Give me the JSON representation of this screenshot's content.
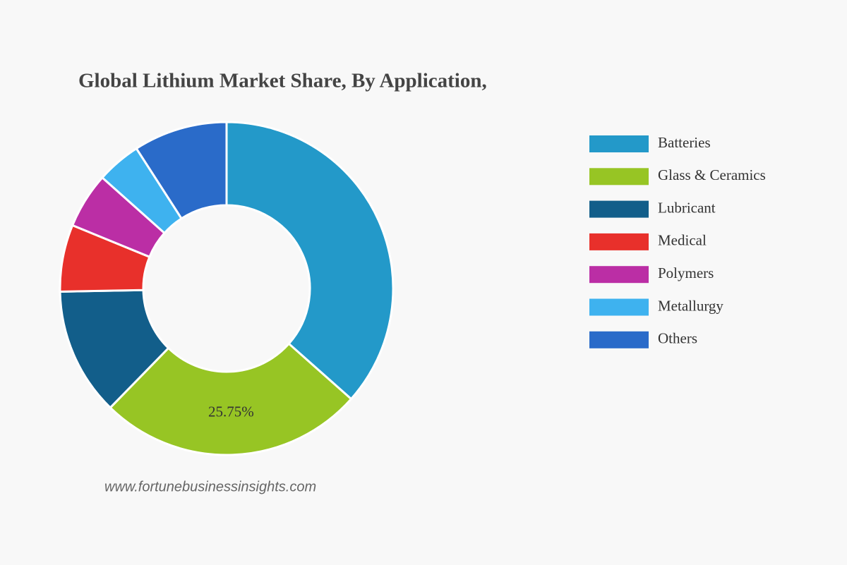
{
  "chart_data": {
    "type": "donut",
    "title": "Global Lithium Market Share, By Application,",
    "watermark": "www.fortunebusinessinsights.com",
    "categories": [
      "Batteries",
      "Glass & Ceramics",
      "Lubricant",
      "Medical",
      "Polymers",
      "Metallurgy",
      "Others"
    ],
    "values": [
      36.55,
      25.75,
      12.4,
      6.5,
      5.4,
      4.3,
      9.1
    ],
    "value_labels": [
      null,
      "25.75%",
      null,
      null,
      null,
      null,
      null
    ],
    "colors": [
      "#2399c9",
      "#97c524",
      "#125e8a",
      "#e8302b",
      "#bb2ea5",
      "#3eb2ef",
      "#2a6bc9"
    ],
    "legend": "right"
  }
}
